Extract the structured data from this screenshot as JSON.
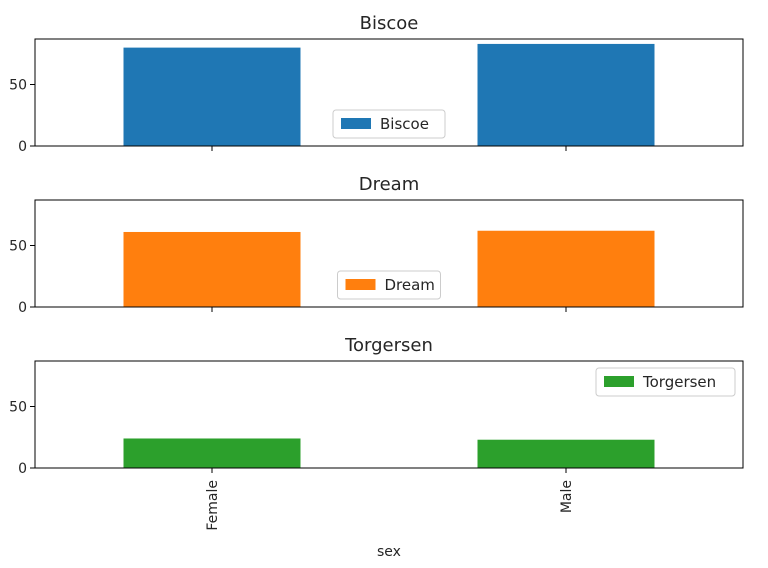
{
  "chart_data": {
    "type": "bar",
    "layout": "subplots-vertical",
    "sharex": true,
    "categories": [
      "Female",
      "Male"
    ],
    "xlabel": "sex",
    "ylim": [
      0,
      87
    ],
    "yticks": [
      0,
      50
    ],
    "series": [
      {
        "name": "Biscoe",
        "title": "Biscoe",
        "values": [
          80,
          83
        ],
        "color": "#1f77b4",
        "legend_loc": "lower center"
      },
      {
        "name": "Dream",
        "title": "Dream",
        "values": [
          61,
          62
        ],
        "color": "#ff7f0e",
        "legend_loc": "lower center"
      },
      {
        "name": "Torgersen",
        "title": "Torgersen",
        "values": [
          24,
          23
        ],
        "color": "#2ca02c",
        "legend_loc": "upper right"
      }
    ]
  }
}
